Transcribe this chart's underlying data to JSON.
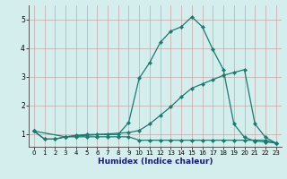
{
  "xlabel": "Humidex (Indice chaleur)",
  "background_color": "#d4eeee",
  "grid_color": "#c8a8a8",
  "line_color": "#1a7a6e",
  "xlim": [
    -0.5,
    23.5
  ],
  "ylim": [
    0.55,
    5.5
  ],
  "yticks": [
    1,
    2,
    3,
    4,
    5
  ],
  "xticks": [
    0,
    1,
    2,
    3,
    4,
    5,
    6,
    7,
    8,
    9,
    10,
    11,
    12,
    13,
    14,
    15,
    16,
    17,
    18,
    19,
    20,
    21,
    22,
    23
  ],
  "curve1_x": [
    0,
    1,
    2,
    3,
    4,
    5,
    6,
    7,
    8,
    9,
    10,
    11,
    12,
    13,
    14,
    15,
    16,
    17,
    18,
    19,
    20,
    21,
    22,
    23
  ],
  "curve1_y": [
    1.1,
    0.82,
    0.82,
    0.9,
    0.9,
    0.9,
    0.9,
    0.9,
    0.9,
    0.9,
    0.78,
    0.78,
    0.78,
    0.78,
    0.78,
    0.78,
    0.78,
    0.78,
    0.78,
    0.78,
    0.78,
    0.78,
    0.78,
    0.68
  ],
  "curve2_x": [
    0,
    1,
    2,
    3,
    4,
    5,
    6,
    7,
    8,
    9,
    10,
    11,
    12,
    13,
    14,
    15,
    16,
    17,
    18,
    19,
    20,
    21,
    22,
    23
  ],
  "curve2_y": [
    1.1,
    0.82,
    0.82,
    0.9,
    0.95,
    0.98,
    0.98,
    0.98,
    0.98,
    1.4,
    2.95,
    3.5,
    4.2,
    4.6,
    4.75,
    5.1,
    4.75,
    3.95,
    3.25,
    1.35,
    0.88,
    0.75,
    0.72,
    0.68
  ],
  "curve3_x": [
    0,
    3,
    9,
    10,
    11,
    12,
    13,
    14,
    15,
    16,
    17,
    18,
    19,
    20,
    21,
    22,
    23
  ],
  "curve3_y": [
    1.1,
    0.9,
    1.05,
    1.12,
    1.35,
    1.65,
    1.95,
    2.3,
    2.6,
    2.75,
    2.9,
    3.05,
    3.15,
    3.25,
    1.35,
    0.88,
    0.68
  ]
}
